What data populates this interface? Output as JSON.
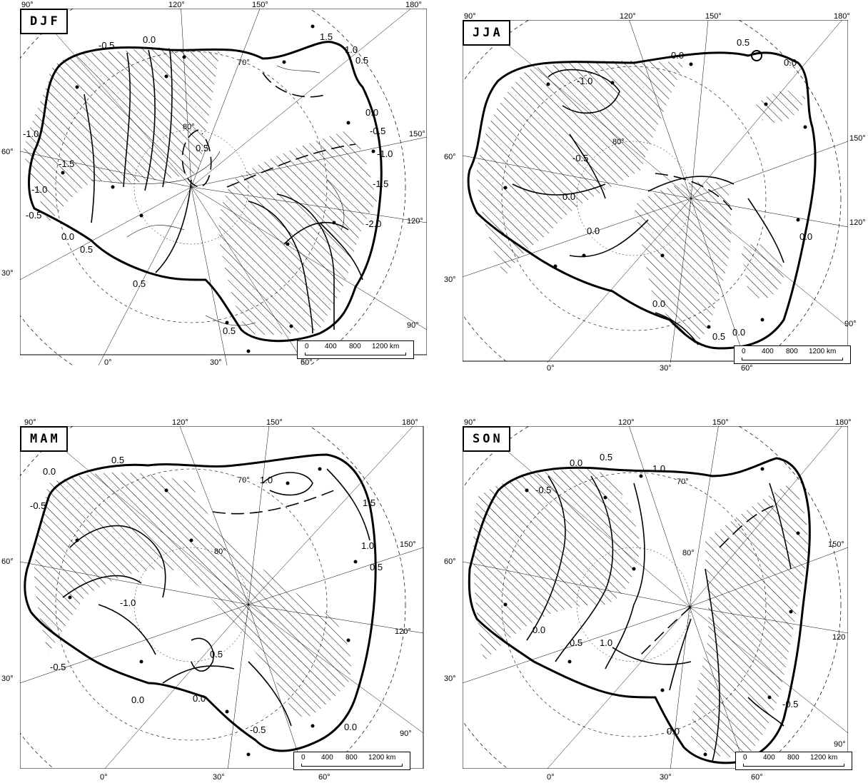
{
  "panels": [
    {
      "season": "DJF",
      "scale_labels": [
        "0",
        "400",
        "800",
        "1200 km"
      ],
      "longitude_labels": [
        "90°",
        "120°",
        "150°",
        "180°",
        "150°",
        "120°",
        "90°",
        "60°",
        "30°",
        "0°",
        "30°",
        "60°"
      ],
      "latitude_labels": [
        "70°",
        "80°"
      ],
      "contour_labels": [
        "-0.5",
        "0.0",
        "1.5",
        "1.0",
        "0.5",
        "-1.0",
        "-1.5",
        "-1.0",
        "-0.5",
        "0.0",
        "0.5",
        "0.5",
        "0.5",
        "0.0",
        "-0.5",
        "-1.0",
        "-1.5",
        "-2.0",
        "0.5"
      ]
    },
    {
      "season": "JJA",
      "scale_labels": [
        "0",
        "400",
        "800",
        "1200 km"
      ],
      "longitude_labels": [
        "90°",
        "120°",
        "150°",
        "180°",
        "150°",
        "120°",
        "90°",
        "60°",
        "30°",
        "0°",
        "30°",
        "60°"
      ],
      "latitude_labels": [
        "80°"
      ],
      "contour_labels": [
        "0.5",
        "0.0",
        "0.0",
        "-1.0",
        "-0.5",
        "0.0",
        "0.0",
        "0.0",
        "0.0",
        "0.5",
        "0.0"
      ]
    },
    {
      "season": "MAM",
      "scale_labels": [
        "0",
        "400",
        "800",
        "1200 km"
      ],
      "longitude_labels": [
        "90°",
        "120°",
        "150°",
        "180°",
        "150°",
        "120°",
        "90°",
        "60°",
        "30°",
        "0°",
        "30°",
        "60°"
      ],
      "latitude_labels": [
        "70°",
        "80°"
      ],
      "contour_labels": [
        "0.5",
        "0.0",
        "1.0",
        "1.5",
        "-0.5",
        "1.0",
        "0.5",
        "-1.0",
        "0.5",
        "-0.5",
        "0.0",
        "0.0",
        "-0.5",
        "0.0"
      ]
    },
    {
      "season": "SON",
      "scale_labels": [
        "0",
        "400",
        "800",
        "1200 km"
      ],
      "longitude_labels": [
        "90°",
        "120°",
        "150°",
        "180°",
        "150°",
        "120",
        "90°",
        "60°",
        "30°",
        "0°",
        "30°",
        "60°"
      ],
      "latitude_labels": [
        "70°",
        "80°"
      ],
      "contour_labels": [
        "0.0",
        "0.5",
        "1.0",
        "-0.5",
        "0.0",
        "0.5",
        "1.0",
        "0.0",
        "-0.5"
      ]
    }
  ]
}
